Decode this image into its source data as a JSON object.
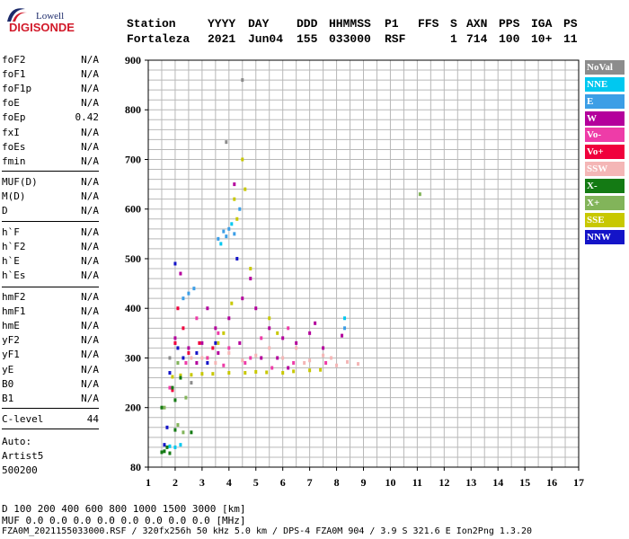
{
  "logo": {
    "line1": "Lowell",
    "line2": "DIGISONDE"
  },
  "header": {
    "labels": [
      "Station",
      "YYYY",
      "DAY",
      "DDD",
      "HHMMSS",
      "P1",
      "FFS",
      "S",
      "AXN",
      "PPS",
      "IGA",
      "PS"
    ],
    "values": [
      "Fortaleza",
      "2021",
      "Jun04",
      "155",
      "033000",
      "RSF",
      "",
      "1",
      "714",
      "100",
      "10+",
      "11"
    ]
  },
  "params": {
    "group1": [
      {
        "k": "foF2",
        "v": "N/A"
      },
      {
        "k": "foF1",
        "v": "N/A"
      },
      {
        "k": "foF1p",
        "v": "N/A"
      },
      {
        "k": "foE",
        "v": "N/A"
      },
      {
        "k": "foEp",
        "v": "0.42"
      },
      {
        "k": "fxI",
        "v": "N/A"
      },
      {
        "k": "foEs",
        "v": "N/A"
      },
      {
        "k": "fmin",
        "v": "N/A"
      }
    ],
    "group2": [
      {
        "k": "MUF(D)",
        "v": "N/A"
      },
      {
        "k": "M(D)",
        "v": "N/A"
      },
      {
        "k": "D",
        "v": "N/A"
      }
    ],
    "group3": [
      {
        "k": "h`F",
        "v": "N/A"
      },
      {
        "k": "h`F2",
        "v": "N/A"
      },
      {
        "k": "h`E",
        "v": "N/A"
      },
      {
        "k": "h`Es",
        "v": "N/A"
      }
    ],
    "group4": [
      {
        "k": "hmF2",
        "v": "N/A"
      },
      {
        "k": "hmF1",
        "v": "N/A"
      },
      {
        "k": "hmE",
        "v": "N/A"
      },
      {
        "k": "yF2",
        "v": "N/A"
      },
      {
        "k": "yF1",
        "v": "N/A"
      },
      {
        "k": "yE",
        "v": "N/A"
      },
      {
        "k": "B0",
        "v": "N/A"
      },
      {
        "k": "B1",
        "v": "N/A"
      }
    ],
    "clevel": {
      "k": "C-level",
      "v": "44"
    },
    "auto": [
      "Auto:",
      "Artist5",
      "500200"
    ]
  },
  "legend": [
    {
      "label": "NoVal",
      "color": "#8c8c8c"
    },
    {
      "label": "NNE",
      "color": "#00c8f0"
    },
    {
      "label": "E",
      "color": "#3c9ee6"
    },
    {
      "label": "W",
      "color": "#b4009c"
    },
    {
      "label": "Vo-",
      "color": "#ee3ca8"
    },
    {
      "label": "Vo+",
      "color": "#f0003c"
    },
    {
      "label": "SSW",
      "color": "#f4b6b6"
    },
    {
      "label": "X-",
      "color": "#147a14"
    },
    {
      "label": "X+",
      "color": "#82b45a"
    },
    {
      "label": "SSE",
      "color": "#c8c800"
    },
    {
      "label": "NNW",
      "color": "#1414c8"
    }
  ],
  "footer": {
    "d_row": "D     100  200  400  600  800 1000 1500 3000 [km]",
    "muf_row": "MUF  0.0  0.0  0.0  0.0  0.0  0.0  0.0  0.0 [MHz]",
    "info": "FZA0M_2021155033000.RSF / 320fx256h 50 kHz 5.0 km / DPS-4 FZA0M 904 / 3.9 S 321.6 E   Ion2Png 1.3.20"
  },
  "chart_data": {
    "type": "scatter",
    "title": "",
    "xlabel": "",
    "ylabel": "",
    "xlim": [
      1,
      17
    ],
    "ylim": [
      80,
      900
    ],
    "xticks": [
      1,
      2,
      3,
      4,
      5,
      6,
      7,
      8,
      9,
      10,
      11,
      12,
      13,
      14,
      15,
      16,
      17
    ],
    "yticks": [
      80,
      200,
      300,
      400,
      500,
      600,
      700,
      800,
      900
    ],
    "grid": true,
    "legend_position": "right",
    "series": [
      {
        "name": "SSE",
        "color": "#c8c800",
        "points": [
          [
            2.2,
            265
          ],
          [
            3.0,
            268
          ],
          [
            4.0,
            270
          ],
          [
            5.0,
            272
          ],
          [
            6.0,
            270
          ],
          [
            7.0,
            275
          ],
          [
            3.8,
            350
          ],
          [
            4.2,
            620
          ],
          [
            4.5,
            700
          ],
          [
            5.5,
            380
          ],
          [
            1.9,
            262
          ],
          [
            2.6,
            266
          ],
          [
            3.4,
            268
          ],
          [
            4.6,
            270
          ],
          [
            5.4,
            271
          ],
          [
            6.4,
            273
          ],
          [
            7.4,
            276
          ],
          [
            3.6,
            330
          ],
          [
            4.1,
            410
          ],
          [
            4.8,
            480
          ],
          [
            4.3,
            580
          ],
          [
            4.6,
            640
          ],
          [
            3.2,
            300
          ],
          [
            5.8,
            350
          ]
        ]
      },
      {
        "name": "SSW",
        "color": "#f4b6b6",
        "points": [
          [
            3.0,
            300
          ],
          [
            4.0,
            310
          ],
          [
            5.0,
            305
          ],
          [
            6.0,
            300
          ],
          [
            7.0,
            295
          ],
          [
            8.0,
            285
          ],
          [
            8.8,
            288
          ],
          [
            7.5,
            305
          ],
          [
            6.5,
            320
          ],
          [
            2.6,
            300
          ],
          [
            3.5,
            290
          ],
          [
            4.5,
            295
          ],
          [
            5.5,
            320
          ],
          [
            6.8,
            290
          ],
          [
            7.8,
            300
          ],
          [
            8.4,
            292
          ]
        ]
      },
      {
        "name": "W",
        "color": "#b4009c",
        "points": [
          [
            2.0,
            340
          ],
          [
            2.5,
            320
          ],
          [
            3.0,
            330
          ],
          [
            3.5,
            360
          ],
          [
            4.0,
            380
          ],
          [
            4.5,
            420
          ],
          [
            5.0,
            400
          ],
          [
            5.5,
            360
          ],
          [
            6.0,
            340
          ],
          [
            6.5,
            330
          ],
          [
            7.0,
            350
          ],
          [
            7.5,
            320
          ],
          [
            8.2,
            345
          ],
          [
            4.2,
            650
          ],
          [
            2.2,
            470
          ],
          [
            2.8,
            290
          ],
          [
            3.6,
            310
          ],
          [
            4.4,
            330
          ],
          [
            5.2,
            300
          ],
          [
            6.2,
            280
          ],
          [
            3.2,
            400
          ],
          [
            4.8,
            460
          ],
          [
            5.8,
            300
          ],
          [
            7.2,
            370
          ]
        ]
      },
      {
        "name": "Vo-",
        "color": "#ee3ca8",
        "points": [
          [
            2.4,
            290
          ],
          [
            3.2,
            300
          ],
          [
            4.0,
            320
          ],
          [
            4.8,
            300
          ],
          [
            5.6,
            280
          ],
          [
            6.4,
            290
          ],
          [
            2.8,
            380
          ],
          [
            3.6,
            350
          ],
          [
            5.2,
            340
          ],
          [
            6.2,
            360
          ],
          [
            1.8,
            240
          ],
          [
            2.0,
            330
          ],
          [
            7.6,
            290
          ],
          [
            4.6,
            290
          ],
          [
            3.8,
            285
          ]
        ]
      },
      {
        "name": "Vo+",
        "color": "#f0003c",
        "points": [
          [
            2.0,
            330
          ],
          [
            2.1,
            400
          ],
          [
            1.9,
            235
          ],
          [
            2.5,
            310
          ],
          [
            2.9,
            330
          ],
          [
            2.3,
            360
          ],
          [
            3.4,
            320
          ]
        ]
      },
      {
        "name": "E",
        "color": "#3c9ee6",
        "points": [
          [
            3.9,
            545
          ],
          [
            3.6,
            540
          ],
          [
            4.2,
            550
          ],
          [
            4.4,
            600
          ],
          [
            2.5,
            430
          ],
          [
            2.7,
            440
          ],
          [
            8.3,
            360
          ],
          [
            4.0,
            560
          ],
          [
            3.8,
            555
          ],
          [
            2.3,
            420
          ]
        ]
      },
      {
        "name": "NNE",
        "color": "#00c8f0",
        "points": [
          [
            2.0,
            120
          ],
          [
            2.2,
            125
          ],
          [
            1.8,
            122
          ],
          [
            4.1,
            570
          ],
          [
            3.7,
            530
          ],
          [
            8.3,
            380
          ]
        ]
      },
      {
        "name": "NNW",
        "color": "#1414c8",
        "points": [
          [
            1.8,
            270
          ],
          [
            2.1,
            320
          ],
          [
            2.3,
            300
          ],
          [
            3.5,
            330
          ],
          [
            4.3,
            500
          ],
          [
            1.6,
            125
          ],
          [
            2.0,
            490
          ],
          [
            1.7,
            160
          ],
          [
            3.2,
            290
          ],
          [
            2.8,
            310
          ]
        ]
      },
      {
        "name": "X-",
        "color": "#147a14",
        "points": [
          [
            1.5,
            110
          ],
          [
            1.7,
            120
          ],
          [
            1.5,
            200
          ],
          [
            2.0,
            155
          ],
          [
            2.0,
            215
          ],
          [
            1.9,
            240
          ],
          [
            2.2,
            260
          ],
          [
            2.6,
            150
          ],
          [
            1.8,
            108
          ],
          [
            1.6,
            112
          ]
        ]
      },
      {
        "name": "X+",
        "color": "#82b45a",
        "points": [
          [
            1.6,
            200
          ],
          [
            2.1,
            165
          ],
          [
            2.1,
            290
          ],
          [
            11.1,
            630
          ],
          [
            2.4,
            220
          ],
          [
            2.3,
            150
          ]
        ]
      },
      {
        "name": "NoVal",
        "color": "#8c8c8c",
        "points": [
          [
            1.8,
            300
          ],
          [
            2.6,
            250
          ],
          [
            4.5,
            860
          ],
          [
            3.9,
            735
          ]
        ]
      }
    ]
  }
}
